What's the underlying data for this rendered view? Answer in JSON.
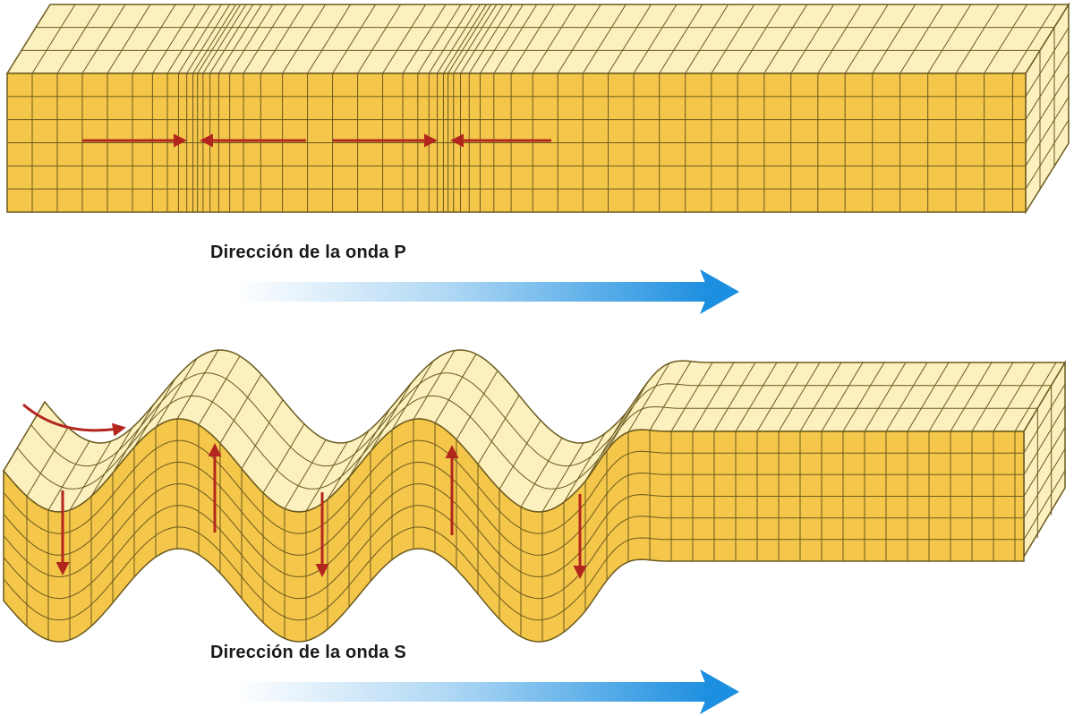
{
  "p_wave": {
    "caption": "Dirección de la onda P"
  },
  "s_wave": {
    "caption": "Dirección de la onda S"
  },
  "colors": {
    "front_face": "#f4c64a",
    "top_face": "#fbf0be",
    "side_face": "#fbf0be",
    "grid_line": "#6b5a1e",
    "motion_arrow": "#b3261e",
    "direction_arrow": "#1d8fe0"
  }
}
